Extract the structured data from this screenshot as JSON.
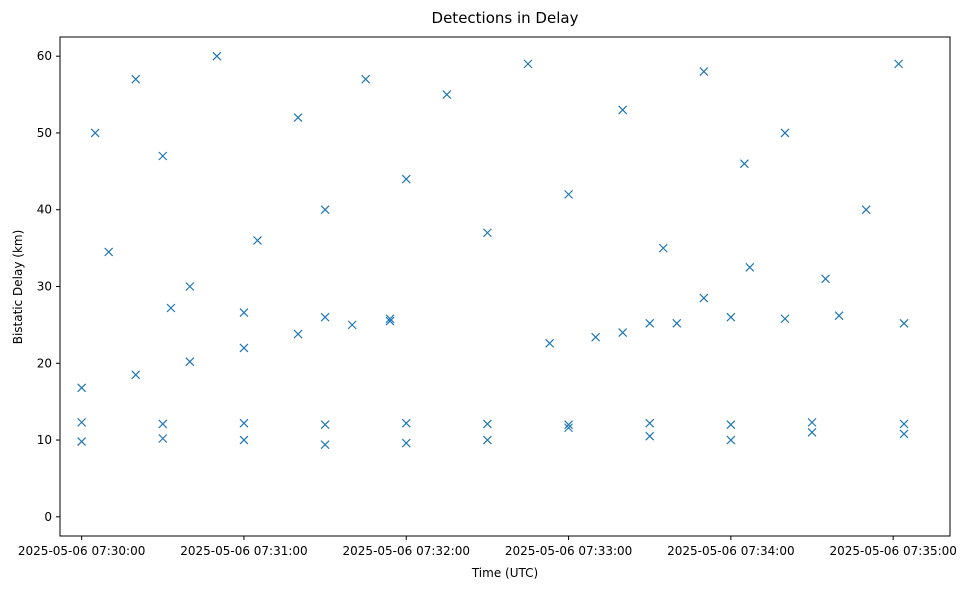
{
  "chart_data": {
    "type": "scatter",
    "title": "Detections in Delay",
    "xlabel": "Time (UTC)",
    "ylabel": "Bistatic Delay (km)",
    "marker": "x",
    "color": "#1f77b4",
    "x_is_time": true,
    "xlim": [
      "2025-05-06 07:29:52",
      "2025-05-06 07:35:21"
    ],
    "ylim": [
      -2.5,
      62.5
    ],
    "x_ticks": [
      "2025-05-06 07:30:00",
      "2025-05-06 07:31:00",
      "2025-05-06 07:32:00",
      "2025-05-06 07:33:00",
      "2025-05-06 07:34:00",
      "2025-05-06 07:35:00"
    ],
    "y_ticks": [
      0,
      10,
      20,
      30,
      40,
      50,
      60
    ],
    "grid": false,
    "series": [
      {
        "x": [
          "2025-05-06 07:30:00",
          "2025-05-06 07:30:20",
          "2025-05-06 07:30:40",
          "2025-05-06 07:31:00",
          "2025-05-06 07:31:20",
          "2025-05-06 07:31:40",
          "2025-05-06 07:31:54"
        ],
        "y": [
          16.8,
          18.5,
          20.2,
          22.0,
          23.8,
          25.0,
          25.8
        ]
      },
      {
        "x": [
          "2025-05-06 07:30:33",
          "2025-05-06 07:31:00",
          "2025-05-06 07:31:30",
          "2025-05-06 07:31:54"
        ],
        "y": [
          27.2,
          26.6,
          26.0,
          25.5
        ]
      },
      {
        "x": [
          "2025-05-06 07:32:53",
          "2025-05-06 07:33:10",
          "2025-05-06 07:33:30",
          "2025-05-06 07:33:50",
          "2025-05-06 07:34:07"
        ],
        "y": [
          22.6,
          23.4,
          25.2,
          28.5,
          32.5
        ]
      },
      {
        "x": [
          "2025-05-06 07:33:20",
          "2025-05-06 07:33:40",
          "2025-05-06 07:34:00",
          "2025-05-06 07:34:20",
          "2025-05-06 07:34:40",
          "2025-05-06 07:35:04"
        ],
        "y": [
          24.0,
          25.2,
          26.0,
          25.8,
          26.2,
          25.2
        ]
      },
      {
        "x": [
          "2025-05-06 07:30:00",
          "2025-05-06 07:30:30",
          "2025-05-06 07:31:00",
          "2025-05-06 07:31:30",
          "2025-05-06 07:32:00",
          "2025-05-06 07:32:30",
          "2025-05-06 07:33:00"
        ],
        "y": [
          12.3,
          12.1,
          12.2,
          12.0,
          12.2,
          12.1,
          12.0
        ]
      },
      {
        "x": [
          "2025-05-06 07:30:00",
          "2025-05-06 07:30:30",
          "2025-05-06 07:31:00",
          "2025-05-06 07:31:30",
          "2025-05-06 07:32:00",
          "2025-05-06 07:32:30",
          "2025-05-06 07:33:00"
        ],
        "y": [
          9.8,
          10.2,
          10.0,
          9.4,
          9.6,
          10.0,
          11.6
        ]
      },
      {
        "x": [
          "2025-05-06 07:33:30",
          "2025-05-06 07:34:00",
          "2025-05-06 07:34:30",
          "2025-05-06 07:35:04"
        ],
        "y": [
          10.5,
          10.0,
          11.0,
          10.8
        ]
      },
      {
        "x": [
          "2025-05-06 07:33:30",
          "2025-05-06 07:34:00",
          "2025-05-06 07:34:30",
          "2025-05-06 07:35:04"
        ],
        "y": [
          12.2,
          12.0,
          12.3,
          12.1
        ]
      },
      {
        "x": [
          "2025-05-06 07:30:05",
          "2025-05-06 07:30:10",
          "2025-05-06 07:30:20",
          "2025-05-06 07:30:30",
          "2025-05-06 07:30:40",
          "2025-05-06 07:30:50",
          "2025-05-06 07:31:05",
          "2025-05-06 07:31:20",
          "2025-05-06 07:31:30",
          "2025-05-06 07:31:45",
          "2025-05-06 07:32:00",
          "2025-05-06 07:32:15",
          "2025-05-06 07:32:30",
          "2025-05-06 07:32:45",
          "2025-05-06 07:33:00",
          "2025-05-06 07:33:20",
          "2025-05-06 07:33:35",
          "2025-05-06 07:33:50",
          "2025-05-06 07:34:05",
          "2025-05-06 07:34:20",
          "2025-05-06 07:34:35",
          "2025-05-06 07:34:50",
          "2025-05-06 07:35:02"
        ],
        "y": [
          50,
          34.5,
          57,
          47,
          30,
          60,
          36,
          52,
          40,
          57,
          44,
          55,
          37,
          59,
          42,
          53,
          35,
          58,
          46,
          50,
          31,
          40,
          59
        ]
      }
    ]
  }
}
